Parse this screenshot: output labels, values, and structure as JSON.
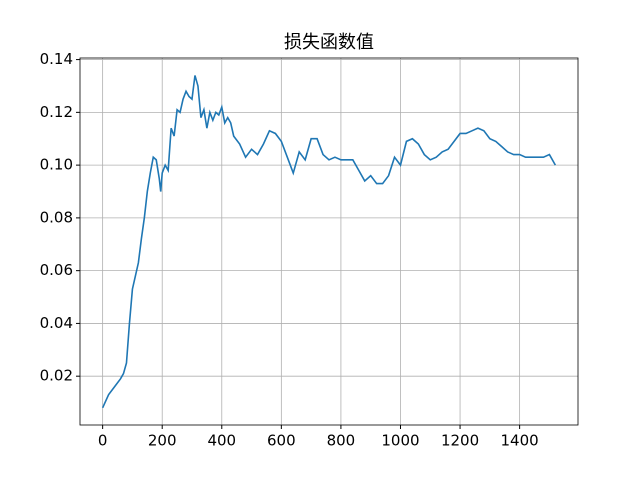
{
  "chart_data": {
    "type": "line",
    "title": "损失函数值",
    "x": [
      0,
      20,
      40,
      60,
      70,
      80,
      90,
      100,
      110,
      120,
      130,
      140,
      150,
      160,
      170,
      180,
      190,
      195,
      200,
      210,
      220,
      230,
      240,
      250,
      260,
      270,
      280,
      290,
      300,
      310,
      320,
      330,
      340,
      350,
      360,
      370,
      380,
      390,
      400,
      410,
      420,
      430,
      440,
      460,
      480,
      500,
      520,
      540,
      560,
      580,
      600,
      620,
      640,
      660,
      680,
      700,
      720,
      740,
      760,
      780,
      800,
      820,
      840,
      860,
      880,
      900,
      920,
      940,
      960,
      980,
      1000,
      1020,
      1040,
      1060,
      1080,
      1100,
      1120,
      1140,
      1160,
      1180,
      1200,
      1220,
      1240,
      1260,
      1280,
      1300,
      1320,
      1340,
      1360,
      1380,
      1400,
      1420,
      1440,
      1460,
      1480,
      1500,
      1520
    ],
    "series": [
      {
        "color": "#1f77b4",
        "values": [
          0.008,
          0.013,
          0.016,
          0.019,
          0.021,
          0.025,
          0.04,
          0.053,
          0.058,
          0.063,
          0.072,
          0.08,
          0.09,
          0.097,
          0.103,
          0.102,
          0.095,
          0.09,
          0.097,
          0.1,
          0.098,
          0.114,
          0.111,
          0.121,
          0.12,
          0.125,
          0.128,
          0.126,
          0.125,
          0.134,
          0.13,
          0.118,
          0.121,
          0.114,
          0.12,
          0.117,
          0.12,
          0.119,
          0.122,
          0.116,
          0.118,
          0.116,
          0.111,
          0.108,
          0.103,
          0.106,
          0.104,
          0.108,
          0.113,
          0.112,
          0.109,
          0.103,
          0.097,
          0.105,
          0.102,
          0.11,
          0.11,
          0.104,
          0.102,
          0.103,
          0.102,
          0.102,
          0.102,
          0.098,
          0.094,
          0.096,
          0.093,
          0.093,
          0.096,
          0.103,
          0.1,
          0.109,
          0.11,
          0.108,
          0.104,
          0.102,
          0.103,
          0.105,
          0.106,
          0.109,
          0.112,
          0.112,
          0.113,
          0.114,
          0.113,
          0.11,
          0.109,
          0.107,
          0.105,
          0.104,
          0.104,
          0.103,
          0.103,
          0.103,
          0.103,
          0.104,
          0.1
        ]
      }
    ],
    "xlim": [
      -76,
      1596
    ],
    "ylim": [
      0.0015,
      0.1406
    ],
    "xticks": [
      0,
      200,
      400,
      600,
      800,
      1000,
      1200,
      1400
    ],
    "yticks": [
      0.02,
      0.04,
      0.06,
      0.08,
      {
        "value": 0.1,
        "label": "0.10"
      },
      0.12,
      0.14
    ],
    "grid": true
  }
}
